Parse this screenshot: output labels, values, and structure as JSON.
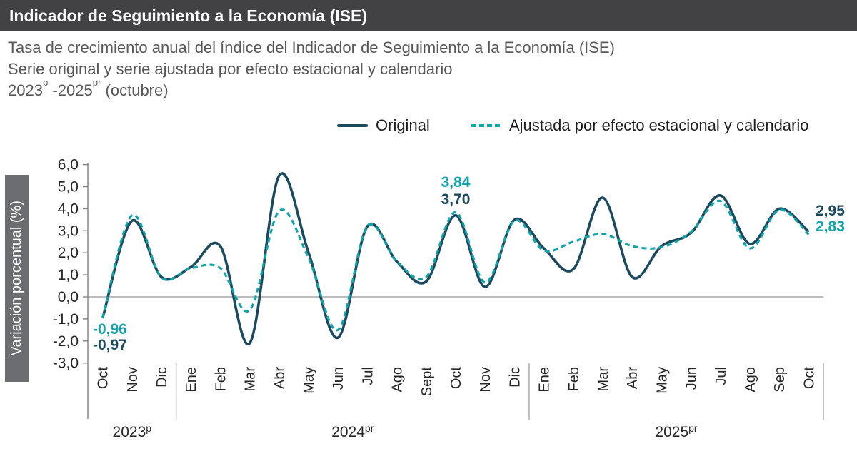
{
  "header": {
    "title": "Indicador de Seguimiento a la Economía (ISE)"
  },
  "subtitle": {
    "line1": "Tasa de crecimiento anual del índice del Indicador de Seguimiento a la Economía (ISE)",
    "line2": "Serie original y serie ajustada por efecto estacional y calendario",
    "period_parts": [
      {
        "t": "2023"
      },
      {
        "s": "p"
      },
      {
        "t": " -2025"
      },
      {
        "s": "pr"
      },
      {
        "t": " (octubre)"
      }
    ]
  },
  "legend": {
    "original_label": "Original",
    "ajustada_label": "Ajustada por efecto estacional y calendario"
  },
  "colors": {
    "original": "#1b4a5f",
    "ajustada": "#12a4aa",
    "title_bar": "#424244",
    "ylabel_bar": "#6c6d70",
    "subtitle_text": "#58585a",
    "axis": "#7f7f7f",
    "zero_line": "#a6a6a6",
    "separator": "#a6a6a6",
    "tick_text": "#262626"
  },
  "chart_data": {
    "type": "line",
    "y_axis_title": "Variación porcentual (%)",
    "ylim": [
      -3,
      6
    ],
    "ytick_labels": [
      "6,0",
      "5,0",
      "4,0",
      "3,0",
      "2,0",
      "1,0",
      "0,0",
      "-1,0",
      "-2,0",
      "-3,0"
    ],
    "ytick_values": [
      6,
      5,
      4,
      3,
      2,
      1,
      0,
      -1,
      -2,
      -3
    ],
    "grid": "zero-line-only",
    "legend_position": "top",
    "categories": [
      "Oct",
      "Nov",
      "Dic",
      "Ene",
      "Feb",
      "Mar",
      "Abr",
      "May",
      "Jun",
      "Jul",
      "Ago",
      "Sept",
      "Oct",
      "Nov",
      "Dic",
      "Ene",
      "Feb",
      "Mar",
      "Abr",
      "May",
      "Jun",
      "Jul",
      "Ago",
      "Sep",
      "Oct"
    ],
    "year_groups": [
      {
        "label": "2023",
        "sup": "p",
        "from": 0,
        "to": 2
      },
      {
        "label": "2024",
        "sup": "pr",
        "from": 3,
        "to": 14
      },
      {
        "label": "2025",
        "sup": "pr",
        "from": 15,
        "to": 24
      }
    ],
    "series": [
      {
        "key": "original",
        "name": "Original",
        "style": "solid",
        "values": [
          -0.97,
          3.45,
          0.9,
          1.35,
          2.3,
          -2.1,
          5.5,
          2.0,
          -1.85,
          3.2,
          1.6,
          0.7,
          3.7,
          0.45,
          3.5,
          2.2,
          1.25,
          4.5,
          0.9,
          2.3,
          2.9,
          4.6,
          2.4,
          4.0,
          2.95
        ]
      },
      {
        "key": "ajustada",
        "name": "Ajustada por efecto estacional y calendario",
        "style": "dashed",
        "values": [
          -0.96,
          3.7,
          0.88,
          1.3,
          1.3,
          -0.6,
          3.9,
          1.75,
          -1.5,
          3.2,
          1.6,
          0.9,
          3.84,
          0.65,
          3.45,
          2.1,
          2.5,
          2.85,
          2.3,
          2.25,
          2.95,
          4.35,
          2.2,
          3.95,
          2.83
        ]
      }
    ],
    "annotations": [
      {
        "series": "ajustada",
        "index": 0,
        "label": "-0,96"
      },
      {
        "series": "original",
        "index": 0,
        "label": "-0,97"
      },
      {
        "series": "ajustada",
        "index": 12,
        "label": "3,84"
      },
      {
        "series": "original",
        "index": 12,
        "label": "3,70"
      },
      {
        "series": "original",
        "index": 24,
        "label": "2,95"
      },
      {
        "series": "ajustada",
        "index": 24,
        "label": "2,83"
      }
    ]
  }
}
